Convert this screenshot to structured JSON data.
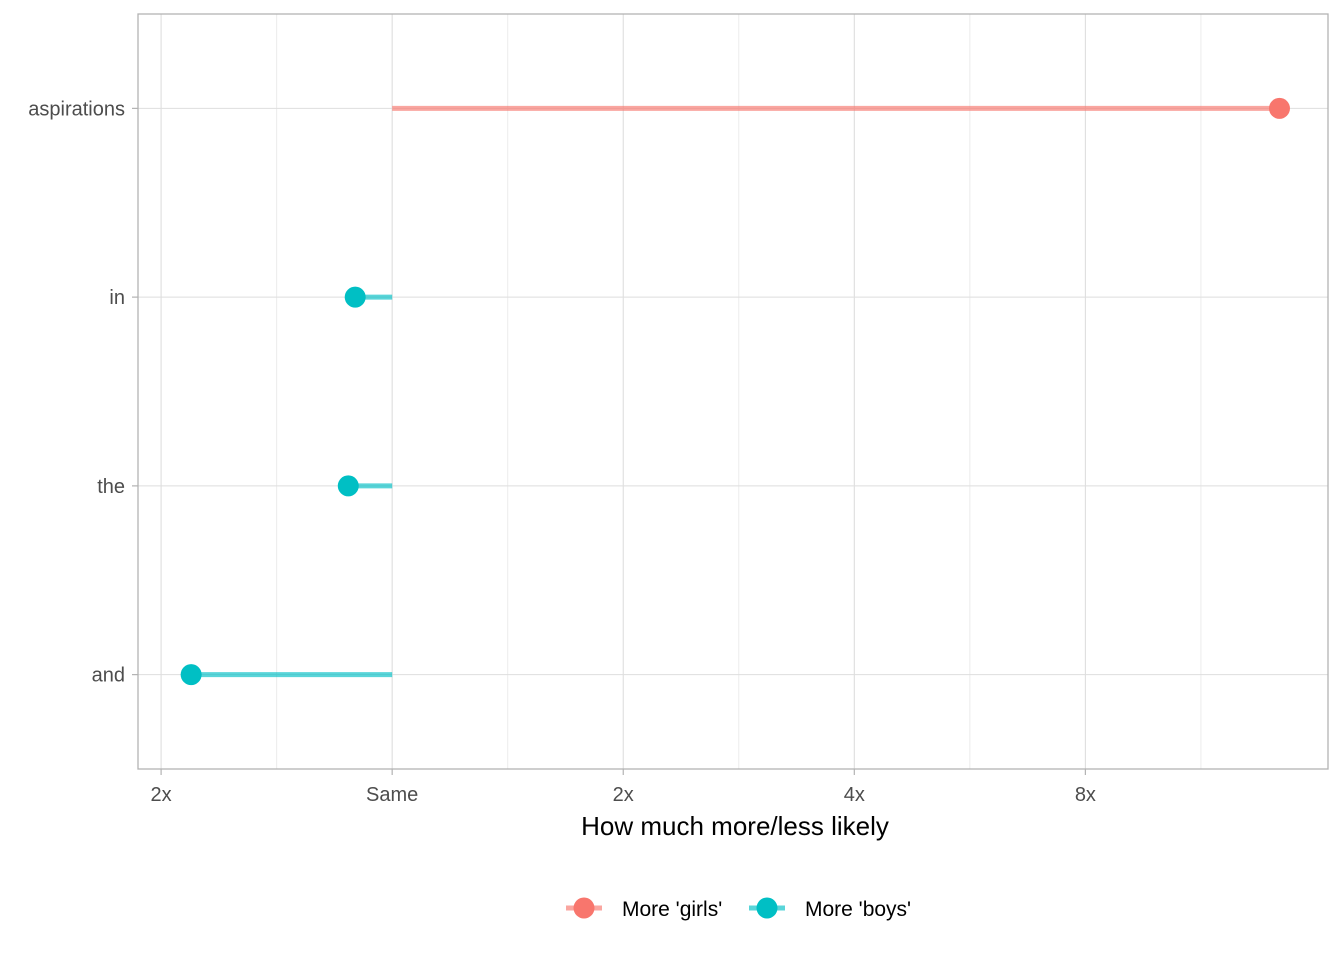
{
  "chart_data": {
    "type": "lollipop",
    "title": "",
    "xlabel": "How much more/less likely",
    "ylabel": "",
    "x_scale": "log2, centered on Same (1x)",
    "xlim_log2": [
      -1.1,
      4.05
    ],
    "x_ticks": [
      {
        "value_log2": -1,
        "label": "2x"
      },
      {
        "value_log2": 0,
        "label": "Same"
      },
      {
        "value_log2": 1,
        "label": "2x"
      },
      {
        "value_log2": 2,
        "label": "4x"
      },
      {
        "value_log2": 3,
        "label": "8x"
      }
    ],
    "categories": [
      "aspirations",
      "in",
      "the",
      "and"
    ],
    "points": [
      {
        "word": "aspirations",
        "log2_ratio": 3.84,
        "group": "More 'girls'"
      },
      {
        "word": "in",
        "log2_ratio": -0.16,
        "group": "More 'boys'"
      },
      {
        "word": "the",
        "log2_ratio": -0.19,
        "group": "More 'boys'"
      },
      {
        "word": "and",
        "log2_ratio": -0.87,
        "group": "More 'boys'"
      }
    ],
    "legend": {
      "position": "bottom",
      "entries": [
        {
          "label": "More 'girls'",
          "color": "#F8766D"
        },
        {
          "label": "More 'boys'",
          "color": "#00BFC4"
        }
      ]
    },
    "grid": true
  }
}
